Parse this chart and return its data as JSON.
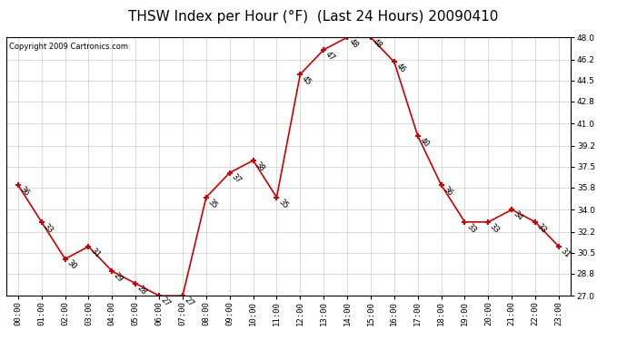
{
  "title": "THSW Index per Hour (°F)  (Last 24 Hours) 20090410",
  "copyright": "Copyright 2009 Cartronics.com",
  "hours": [
    "00:00",
    "01:00",
    "02:00",
    "03:00",
    "04:00",
    "05:00",
    "06:00",
    "07:00",
    "08:00",
    "09:00",
    "10:00",
    "11:00",
    "12:00",
    "13:00",
    "14:00",
    "15:00",
    "16:00",
    "17:00",
    "18:00",
    "19:00",
    "20:00",
    "21:00",
    "22:00",
    "23:00"
  ],
  "values": [
    36,
    33,
    30,
    31,
    29,
    28,
    27,
    27,
    35,
    37,
    38,
    35,
    45,
    47,
    48,
    48,
    46,
    40,
    36,
    33,
    33,
    34,
    33,
    31
  ],
  "ylim": [
    27.0,
    48.0
  ],
  "yticks": [
    27.0,
    28.8,
    30.5,
    32.2,
    34.0,
    35.8,
    37.5,
    39.2,
    41.0,
    42.8,
    44.5,
    46.2,
    48.0
  ],
  "line_color": "#cc0000",
  "marker_color": "#cc0000",
  "bg_color": "#ffffff",
  "grid_color": "#cccccc",
  "title_fontsize": 11,
  "label_fontsize": 6.5,
  "tick_fontsize": 6.5,
  "copyright_fontsize": 6
}
